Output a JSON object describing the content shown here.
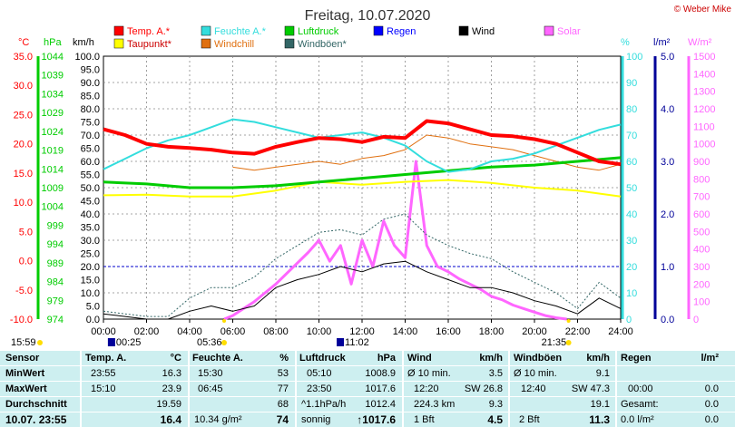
{
  "header": {
    "title": "Freitag, 10.07.2020",
    "copyright": "© Weber Mike"
  },
  "legend": [
    {
      "label": "Temp. A.*",
      "color": "#ff0000"
    },
    {
      "label": "Feuchte A.*",
      "color": "#33dddd"
    },
    {
      "label": "Luftdruck",
      "color": "#00cc00"
    },
    {
      "label": "Regen",
      "color": "#0000ff"
    },
    {
      "label": "Wind",
      "color": "#000000"
    },
    {
      "label": "Solar",
      "color": "#ff66ff"
    },
    {
      "label": "Taupunkt*",
      "color": "#ffff00"
    },
    {
      "label": "Windchill",
      "color": "#e07010"
    },
    {
      "label": "Windböen*",
      "color": "#336666"
    }
  ],
  "chart_data": {
    "type": "line",
    "x_unit": "hour",
    "xlim": [
      0,
      24
    ],
    "x_ticks": [
      "00:00",
      "02:00",
      "04:00",
      "06:00",
      "08:00",
      "10:00",
      "12:00",
      "14:00",
      "16:00",
      "18:00",
      "20:00",
      "22:00",
      "24:00"
    ],
    "axes": {
      "temp": {
        "unit": "°C",
        "min": -10,
        "max": 35,
        "ticks": [
          "35.0",
          "30.0",
          "25.0",
          "20.0",
          "15.0",
          "10.0",
          "5.0",
          "0.0",
          "-5.0",
          "-10.0"
        ],
        "color": "#ff0000"
      },
      "pressure": {
        "unit": "hPa",
        "min": 974,
        "max": 1044,
        "ticks": [
          "1044",
          "1039",
          "1034",
          "1029",
          "1024",
          "1019",
          "1014",
          "1009",
          "1004",
          "999",
          "994",
          "989",
          "984",
          "979",
          "974"
        ],
        "color": "#00cc00"
      },
      "wind": {
        "unit": "km/h",
        "min": 0,
        "max": 100,
        "ticks": [
          "100.0",
          "95.0",
          "90.0",
          "85.0",
          "80.0",
          "75.0",
          "70.0",
          "65.0",
          "60.0",
          "55.0",
          "50.0",
          "45.0",
          "40.0",
          "35.0",
          "30.0",
          "25.0",
          "20.0",
          "15.0",
          "10.0",
          "5.0",
          "0.0"
        ],
        "color": "#000000"
      },
      "humidity": {
        "unit": "%",
        "min": 0,
        "max": 100,
        "ticks": [
          "100",
          "90",
          "80",
          "70",
          "60",
          "50",
          "40",
          "30",
          "20",
          "10",
          "0"
        ],
        "color": "#33dddd"
      },
      "rain": {
        "unit": "l/m²",
        "min": 0,
        "max": 5,
        "ticks": [
          "5.0",
          "4.0",
          "3.0",
          "2.0",
          "1.0",
          "0.0"
        ],
        "color": "#000099"
      },
      "solar": {
        "unit": "W/m²",
        "min": 0,
        "max": 1500,
        "ticks": [
          "1500",
          "1400",
          "1300",
          "1200",
          "1100",
          "1000",
          "900",
          "800",
          "700",
          "600",
          "500",
          "400",
          "300",
          "200",
          "100",
          "0"
        ],
        "color": "#ff66ff"
      }
    },
    "series": [
      {
        "name": "Temp. A.*",
        "axis": "temp",
        "color": "#ff0000",
        "x": [
          0,
          1,
          2,
          3,
          4,
          5,
          6,
          7,
          8,
          9,
          10,
          11,
          12,
          13,
          14,
          15,
          16,
          17,
          18,
          19,
          20,
          21,
          22,
          23,
          24
        ],
        "y": [
          22.5,
          21.5,
          20.0,
          19.5,
          19.3,
          19.0,
          18.5,
          18.3,
          19.5,
          20.3,
          21.0,
          20.8,
          20.3,
          21.2,
          21.0,
          23.9,
          23.5,
          22.5,
          21.5,
          21.3,
          20.8,
          20.0,
          18.5,
          17.0,
          16.5
        ]
      },
      {
        "name": "Feuchte A.*",
        "axis": "humidity",
        "color": "#33dddd",
        "x": [
          0,
          1,
          2,
          3,
          4,
          5,
          6,
          7,
          8,
          9,
          10,
          11,
          12,
          13,
          14,
          15,
          16,
          17,
          18,
          19,
          20,
          21,
          22,
          23,
          24
        ],
        "y": [
          57,
          61,
          65,
          68,
          70,
          73,
          76,
          75,
          73,
          71,
          69,
          70,
          71,
          69,
          66,
          60,
          56,
          57,
          60,
          61,
          63,
          66,
          69,
          72,
          74
        ]
      },
      {
        "name": "Luftdruck",
        "axis": "pressure",
        "color": "#00cc00",
        "x": [
          0,
          2,
          4,
          6,
          8,
          10,
          12,
          14,
          16,
          18,
          20,
          22,
          24
        ],
        "y": [
          1010.5,
          1010.0,
          1009.0,
          1009.0,
          1009.5,
          1010.5,
          1011.5,
          1012.5,
          1013.5,
          1014.5,
          1015.0,
          1016.0,
          1017.0
        ]
      },
      {
        "name": "Taupunkt*",
        "axis": "temp",
        "color": "#ffff00",
        "x": [
          0,
          2,
          4,
          6,
          8,
          10,
          12,
          14,
          16,
          18,
          20,
          22,
          24
        ],
        "y": [
          11.2,
          11.3,
          11.0,
          11.0,
          12.0,
          13.5,
          13.0,
          13.5,
          13.8,
          13.3,
          12.5,
          12.0,
          11.0
        ]
      },
      {
        "name": "Windchill",
        "axis": "temp",
        "color": "#e07010",
        "x": [
          6,
          7,
          8,
          9,
          10,
          11,
          12,
          13,
          14,
          15,
          16,
          17,
          18,
          19,
          20,
          21,
          22,
          23,
          24
        ],
        "y": [
          16.0,
          15.5,
          16.0,
          16.5,
          17.0,
          16.5,
          17.5,
          18.0,
          19.0,
          21.5,
          21.0,
          20.0,
          19.5,
          19.0,
          18.0,
          17.0,
          16.0,
          15.5,
          16.5
        ]
      },
      {
        "name": "Wind",
        "axis": "wind",
        "color": "#000000",
        "x": [
          0,
          1,
          2,
          3,
          4,
          5,
          6,
          7,
          8,
          9,
          10,
          11,
          12,
          13,
          14,
          15,
          16,
          17,
          18,
          19,
          20,
          21,
          22,
          23,
          24
        ],
        "y": [
          2,
          1,
          0,
          0,
          3,
          5,
          3,
          5,
          12,
          15,
          17,
          20,
          18,
          21,
          22,
          18,
          15,
          12,
          12,
          10,
          7,
          5,
          2,
          8,
          4
        ]
      },
      {
        "name": "Windböen*",
        "axis": "wind",
        "color": "#336666",
        "x": [
          0,
          1,
          2,
          3,
          4,
          5,
          6,
          7,
          8,
          9,
          10,
          11,
          12,
          13,
          14,
          15,
          16,
          17,
          18,
          19,
          20,
          21,
          22,
          23,
          24
        ],
        "y": [
          3,
          2,
          1,
          1,
          8,
          12,
          12,
          16,
          23,
          28,
          33,
          34,
          32,
          38,
          40,
          32,
          28,
          25,
          23,
          18,
          14,
          10,
          4,
          14,
          8
        ]
      },
      {
        "name": "Solar",
        "axis": "solar",
        "color": "#ff66ff",
        "x": [
          5.6,
          6,
          6.5,
          7,
          7.5,
          8,
          8.5,
          9,
          9.5,
          10,
          10.5,
          11,
          11.5,
          12,
          12.5,
          13,
          13.5,
          14,
          14.5,
          15,
          15.5,
          16,
          16.5,
          17,
          17.5,
          18,
          18.5,
          19,
          19.5,
          20,
          20.5,
          21,
          21.5
        ],
        "y": [
          0,
          20,
          60,
          100,
          150,
          200,
          260,
          320,
          380,
          450,
          330,
          420,
          200,
          450,
          300,
          560,
          420,
          350,
          900,
          420,
          300,
          270,
          230,
          200,
          170,
          130,
          110,
          80,
          60,
          40,
          20,
          8,
          0
        ]
      }
    ],
    "rain_line_level": 1.0
  },
  "sun": {
    "rise": "05:36",
    "set": "21:35",
    "moon_rise": "00:25",
    "moon_set": "11:02",
    "left_time": "15:59"
  },
  "table": {
    "headers": {
      "sensor": "Sensor",
      "temp": "Temp. A.",
      "temp_unit": "°C",
      "hum": "Feuchte A.",
      "hum_unit": "%",
      "pres": "Luftdruck",
      "pres_unit": "hPa",
      "wind": "Wind",
      "wind_unit": "km/h",
      "gust": "Windböen",
      "gust_unit": "km/h",
      "rain": "Regen",
      "rain_unit": "l/m²"
    },
    "rows": {
      "min": {
        "label": "MinWert",
        "temp_time": "23:55",
        "temp_val": "16.3",
        "hum_time": "15:30",
        "hum_val": "53",
        "pres_time": "05:10",
        "pres_val": "1008.9",
        "wind_label": "Ø 10 min.",
        "wind_val": "3.5",
        "gust_label": "Ø 10 min.",
        "gust_val": "9.1",
        "rain_time": "",
        "rain_val": ""
      },
      "max": {
        "label": "MaxWert",
        "temp_time": "15:10",
        "temp_val": "23.9",
        "hum_time": "06:45",
        "hum_val": "77",
        "pres_time": "23:50",
        "pres_val": "1017.6",
        "wind_time": "12:20",
        "wind_val": "SW 26.8",
        "gust_time": "12:40",
        "gust_val": "SW 47.3",
        "rain_time": "00:00",
        "rain_val": "0.0"
      },
      "avg": {
        "label": "Durchschnitt",
        "temp_val": "19.59",
        "hum_val": "68",
        "pres_label": "^1.1hPa/h",
        "pres_val": "1012.4",
        "wind_label": "224.3 km",
        "wind_val": "9.3",
        "gust_val": "19.1",
        "rain_label": "Gesamt:",
        "rain_val": "0.0"
      },
      "cur": {
        "label": "10.07. 23:55",
        "temp_val": "16.4",
        "hum_label": "10.34 g/m²",
        "hum_val": "74",
        "pres_label": "sonnig",
        "pres_val": "↑1017.6",
        "wind_label": "1 Bft",
        "wind_val": "4.5",
        "gust_label": "2 Bft",
        "gust_val": "11.3",
        "rain_label": "0.0 l/m²",
        "rain_val": "0.0"
      }
    }
  }
}
